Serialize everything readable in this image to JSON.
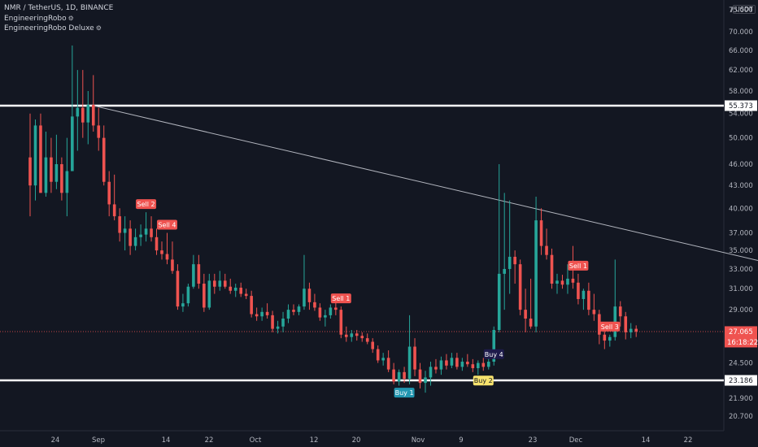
{
  "legend": {
    "line1": "NMR / TetherUS, 1D, BINANCE",
    "line2": "EngineeringRobo",
    "line3": "EngineeringRobo Deluxe",
    "gear_icon": "gear-icon"
  },
  "currency_label": "USDT",
  "colors": {
    "background": "#131722",
    "up": "#26a69a",
    "down": "#ef5350",
    "level_line": "#ffffff",
    "trend_line": "#b2b5be",
    "buy_label": "#2196b0",
    "buy_label_yellow": "#f7e36e",
    "sell_label": "#ef5350",
    "price_tag": "#ef5350"
  },
  "chart_data": {
    "type": "candlestick",
    "y_scale": "log",
    "y_ticks": [
      "20.700",
      "21.900",
      "23.186",
      "24.500",
      "27.065",
      "29.000",
      "31.000",
      "33.000",
      "35.000",
      "37.000",
      "40.000",
      "43.000",
      "46.000",
      "50.000",
      "54.000",
      "55.373",
      "58.000",
      "62.000",
      "66.000",
      "70.000",
      "75.000"
    ],
    "x_ticks": [
      "24",
      "Sep",
      "14",
      "22",
      "Oct",
      "12",
      "20",
      "Nov",
      "9",
      "23",
      "Dec",
      "14",
      "22"
    ],
    "last_price": "27.065",
    "countdown": "16:18:22",
    "horizontal_levels": [
      "55.373",
      "23.186"
    ],
    "axis_top_value": "7",
    "candles": [
      {
        "o": 47.0,
        "h": 54.0,
        "l": 39.0,
        "c": 43.0
      },
      {
        "o": 43.0,
        "h": 53.0,
        "l": 41.0,
        "c": 52.0
      },
      {
        "o": 52.0,
        "h": 54.0,
        "l": 42.0,
        "c": 42.0
      },
      {
        "o": 42.0,
        "h": 51.0,
        "l": 41.5,
        "c": 47.0
      },
      {
        "o": 47.0,
        "h": 50.0,
        "l": 42.0,
        "c": 43.5
      },
      {
        "o": 43.5,
        "h": 50.5,
        "l": 42.5,
        "c": 46.0
      },
      {
        "o": 46.0,
        "h": 47.0,
        "l": 41.0,
        "c": 42.0
      },
      {
        "o": 42.0,
        "h": 50.0,
        "l": 39.0,
        "c": 45.0
      },
      {
        "o": 45.0,
        "h": 67.0,
        "l": 45.0,
        "c": 53.5
      },
      {
        "o": 53.5,
        "h": 62.0,
        "l": 48.0,
        "c": 55.0
      },
      {
        "o": 55.0,
        "h": 62.0,
        "l": 50.0,
        "c": 52.5
      },
      {
        "o": 52.5,
        "h": 58.0,
        "l": 49.0,
        "c": 55.5
      },
      {
        "o": 55.5,
        "h": 61.0,
        "l": 51.0,
        "c": 52.0
      },
      {
        "o": 52.0,
        "h": 55.0,
        "l": 48.0,
        "c": 50.0
      },
      {
        "o": 50.0,
        "h": 52.0,
        "l": 43.0,
        "c": 43.5
      },
      {
        "o": 43.5,
        "h": 45.0,
        "l": 39.0,
        "c": 40.5
      },
      {
        "o": 40.5,
        "h": 44.5,
        "l": 38.5,
        "c": 39.0
      },
      {
        "o": 39.0,
        "h": 40.0,
        "l": 36.0,
        "c": 37.0
      },
      {
        "o": 37.0,
        "h": 39.0,
        "l": 35.0,
        "c": 37.5
      },
      {
        "o": 37.5,
        "h": 38.5,
        "l": 34.5,
        "c": 35.5
      },
      {
        "o": 35.5,
        "h": 37.5,
        "l": 35.0,
        "c": 36.5
      },
      {
        "o": 36.5,
        "h": 38.0,
        "l": 35.5,
        "c": 36.8
      },
      {
        "o": 36.8,
        "h": 39.5,
        "l": 36.0,
        "c": 37.5
      },
      {
        "o": 37.5,
        "h": 39.0,
        "l": 36.0,
        "c": 36.5
      },
      {
        "o": 36.5,
        "h": 37.5,
        "l": 34.5,
        "c": 35.0
      },
      {
        "o": 35.0,
        "h": 36.0,
        "l": 34.0,
        "c": 34.6
      },
      {
        "o": 34.6,
        "h": 37.0,
        "l": 33.5,
        "c": 34.0
      },
      {
        "o": 34.0,
        "h": 36.0,
        "l": 32.5,
        "c": 32.8
      },
      {
        "o": 32.8,
        "h": 33.5,
        "l": 29.0,
        "c": 29.3
      },
      {
        "o": 29.3,
        "h": 30.5,
        "l": 28.8,
        "c": 29.6
      },
      {
        "o": 29.6,
        "h": 31.5,
        "l": 29.3,
        "c": 31.2
      },
      {
        "o": 31.2,
        "h": 34.5,
        "l": 31.0,
        "c": 33.5
      },
      {
        "o": 33.5,
        "h": 34.5,
        "l": 31.0,
        "c": 31.5
      },
      {
        "o": 31.5,
        "h": 32.5,
        "l": 28.8,
        "c": 29.2
      },
      {
        "o": 29.2,
        "h": 32.5,
        "l": 29.0,
        "c": 31.8
      },
      {
        "o": 31.8,
        "h": 32.5,
        "l": 30.5,
        "c": 31.2
      },
      {
        "o": 31.2,
        "h": 32.8,
        "l": 30.8,
        "c": 31.8
      },
      {
        "o": 31.8,
        "h": 32.5,
        "l": 31.0,
        "c": 31.2
      },
      {
        "o": 31.2,
        "h": 32.0,
        "l": 30.5,
        "c": 30.8
      },
      {
        "o": 30.8,
        "h": 31.5,
        "l": 30.2,
        "c": 31.1
      },
      {
        "o": 31.1,
        "h": 31.6,
        "l": 30.2,
        "c": 30.5
      },
      {
        "o": 30.5,
        "h": 31.0,
        "l": 30.0,
        "c": 30.3
      },
      {
        "o": 30.3,
        "h": 30.8,
        "l": 28.3,
        "c": 28.6
      },
      {
        "o": 28.6,
        "h": 29.2,
        "l": 28.0,
        "c": 28.4
      },
      {
        "o": 28.4,
        "h": 29.2,
        "l": 28.0,
        "c": 28.8
      },
      {
        "o": 28.8,
        "h": 29.6,
        "l": 28.2,
        "c": 28.5
      },
      {
        "o": 28.5,
        "h": 28.9,
        "l": 27.0,
        "c": 27.3
      },
      {
        "o": 27.3,
        "h": 28.0,
        "l": 26.9,
        "c": 27.5
      },
      {
        "o": 27.5,
        "h": 28.8,
        "l": 27.0,
        "c": 28.2
      },
      {
        "o": 28.2,
        "h": 29.5,
        "l": 27.8,
        "c": 29.0
      },
      {
        "o": 29.0,
        "h": 29.5,
        "l": 28.5,
        "c": 28.8
      },
      {
        "o": 28.8,
        "h": 29.5,
        "l": 28.5,
        "c": 29.3
      },
      {
        "o": 29.3,
        "h": 34.5,
        "l": 29.0,
        "c": 31.0
      },
      {
        "o": 31.0,
        "h": 31.6,
        "l": 29.0,
        "c": 29.7
      },
      {
        "o": 29.7,
        "h": 30.5,
        "l": 28.9,
        "c": 29.2
      },
      {
        "o": 29.2,
        "h": 29.6,
        "l": 28.0,
        "c": 28.3
      },
      {
        "o": 28.3,
        "h": 29.0,
        "l": 27.5,
        "c": 28.5
      },
      {
        "o": 28.5,
        "h": 29.5,
        "l": 28.2,
        "c": 29.2
      },
      {
        "o": 29.2,
        "h": 29.8,
        "l": 28.5,
        "c": 29.0
      },
      {
        "o": 29.0,
        "h": 29.3,
        "l": 26.5,
        "c": 26.8
      },
      {
        "o": 26.8,
        "h": 27.5,
        "l": 26.2,
        "c": 26.6
      },
      {
        "o": 26.6,
        "h": 27.2,
        "l": 26.2,
        "c": 26.9
      },
      {
        "o": 26.9,
        "h": 27.2,
        "l": 26.3,
        "c": 26.7
      },
      {
        "o": 26.7,
        "h": 27.0,
        "l": 26.2,
        "c": 26.5
      },
      {
        "o": 26.5,
        "h": 26.9,
        "l": 26.0,
        "c": 26.2
      },
      {
        "o": 26.2,
        "h": 26.5,
        "l": 25.3,
        "c": 25.6
      },
      {
        "o": 25.6,
        "h": 25.9,
        "l": 24.5,
        "c": 24.7
      },
      {
        "o": 24.7,
        "h": 25.3,
        "l": 24.3,
        "c": 24.9
      },
      {
        "o": 24.9,
        "h": 25.5,
        "l": 23.8,
        "c": 24.0
      },
      {
        "o": 24.0,
        "h": 24.5,
        "l": 22.9,
        "c": 23.1
      },
      {
        "o": 23.1,
        "h": 24.0,
        "l": 22.8,
        "c": 23.8
      },
      {
        "o": 23.8,
        "h": 24.2,
        "l": 23.0,
        "c": 23.3
      },
      {
        "o": 23.3,
        "h": 28.5,
        "l": 22.9,
        "c": 25.8
      },
      {
        "o": 25.8,
        "h": 26.5,
        "l": 23.5,
        "c": 24.0
      },
      {
        "o": 24.0,
        "h": 24.5,
        "l": 22.6,
        "c": 23.0
      },
      {
        "o": 23.0,
        "h": 23.9,
        "l": 22.3,
        "c": 23.4
      },
      {
        "o": 23.4,
        "h": 24.6,
        "l": 22.8,
        "c": 24.2
      },
      {
        "o": 24.2,
        "h": 24.8,
        "l": 23.7,
        "c": 24.0
      },
      {
        "o": 24.0,
        "h": 25.0,
        "l": 23.6,
        "c": 24.7
      },
      {
        "o": 24.7,
        "h": 25.2,
        "l": 24.0,
        "c": 24.3
      },
      {
        "o": 24.3,
        "h": 25.3,
        "l": 24.1,
        "c": 24.9
      },
      {
        "o": 24.9,
        "h": 25.3,
        "l": 24.0,
        "c": 24.2
      },
      {
        "o": 24.2,
        "h": 24.9,
        "l": 23.9,
        "c": 24.6
      },
      {
        "o": 24.6,
        "h": 25.2,
        "l": 24.2,
        "c": 24.4
      },
      {
        "o": 24.4,
        "h": 24.8,
        "l": 23.8,
        "c": 24.1
      },
      {
        "o": 24.1,
        "h": 24.7,
        "l": 23.6,
        "c": 24.5
      },
      {
        "o": 24.5,
        "h": 24.9,
        "l": 23.9,
        "c": 24.2
      },
      {
        "o": 24.2,
        "h": 25.0,
        "l": 24.0,
        "c": 24.6
      },
      {
        "o": 24.6,
        "h": 27.5,
        "l": 24.3,
        "c": 27.2
      },
      {
        "o": 27.2,
        "h": 46.0,
        "l": 27.0,
        "c": 32.5
      },
      {
        "o": 32.5,
        "h": 42.0,
        "l": 29.0,
        "c": 33.0
      },
      {
        "o": 33.0,
        "h": 41.0,
        "l": 30.5,
        "c": 34.3
      },
      {
        "o": 34.3,
        "h": 35.0,
        "l": 31.5,
        "c": 33.5
      },
      {
        "o": 33.5,
        "h": 34.0,
        "l": 28.5,
        "c": 29.0
      },
      {
        "o": 29.0,
        "h": 31.0,
        "l": 27.0,
        "c": 28.2
      },
      {
        "o": 28.2,
        "h": 32.0,
        "l": 27.3,
        "c": 27.5
      },
      {
        "o": 27.5,
        "h": 41.5,
        "l": 27.0,
        "c": 38.5
      },
      {
        "o": 38.5,
        "h": 40.0,
        "l": 34.5,
        "c": 35.5
      },
      {
        "o": 35.5,
        "h": 37.5,
        "l": 34.0,
        "c": 34.5
      },
      {
        "o": 34.5,
        "h": 35.2,
        "l": 31.0,
        "c": 31.5
      },
      {
        "o": 31.5,
        "h": 32.5,
        "l": 30.5,
        "c": 31.8
      },
      {
        "o": 31.8,
        "h": 32.4,
        "l": 31.0,
        "c": 31.4
      },
      {
        "o": 31.4,
        "h": 33.5,
        "l": 30.5,
        "c": 32.0
      },
      {
        "o": 32.0,
        "h": 35.5,
        "l": 31.0,
        "c": 31.6
      },
      {
        "o": 31.6,
        "h": 32.5,
        "l": 29.5,
        "c": 30.0
      },
      {
        "o": 30.0,
        "h": 31.0,
        "l": 29.0,
        "c": 30.8
      },
      {
        "o": 30.8,
        "h": 31.6,
        "l": 28.5,
        "c": 29.0
      },
      {
        "o": 29.0,
        "h": 30.5,
        "l": 28.0,
        "c": 28.6
      },
      {
        "o": 28.6,
        "h": 29.0,
        "l": 26.0,
        "c": 26.8
      },
      {
        "o": 26.8,
        "h": 27.5,
        "l": 25.6,
        "c": 26.3
      },
      {
        "o": 26.3,
        "h": 26.8,
        "l": 25.8,
        "c": 26.6
      },
      {
        "o": 26.6,
        "h": 34.0,
        "l": 26.3,
        "c": 29.3
      },
      {
        "o": 29.3,
        "h": 29.8,
        "l": 27.5,
        "c": 28.4
      },
      {
        "o": 28.4,
        "h": 28.8,
        "l": 26.4,
        "c": 27.0
      },
      {
        "o": 27.0,
        "h": 27.8,
        "l": 26.5,
        "c": 27.3
      },
      {
        "o": 27.3,
        "h": 27.6,
        "l": 26.6,
        "c": 27.065
      }
    ],
    "signals": [
      {
        "index": 22,
        "text": "Sell 2",
        "type": "sell"
      },
      {
        "index": 26,
        "text": "Sell 4",
        "type": "sell"
      },
      {
        "index": 59,
        "text": "Sell 1",
        "type": "sell"
      },
      {
        "index": 71,
        "text": "Buy 1",
        "type": "buy"
      },
      {
        "index": 86,
        "text": "Buy 2",
        "type": "buy-yellow"
      },
      {
        "index": 88,
        "text": "Buy 4",
        "type": "buy-purple"
      },
      {
        "index": 104,
        "text": "Sell 1",
        "type": "sell"
      },
      {
        "index": 110,
        "text": "Sell 3",
        "type": "sell"
      }
    ]
  }
}
